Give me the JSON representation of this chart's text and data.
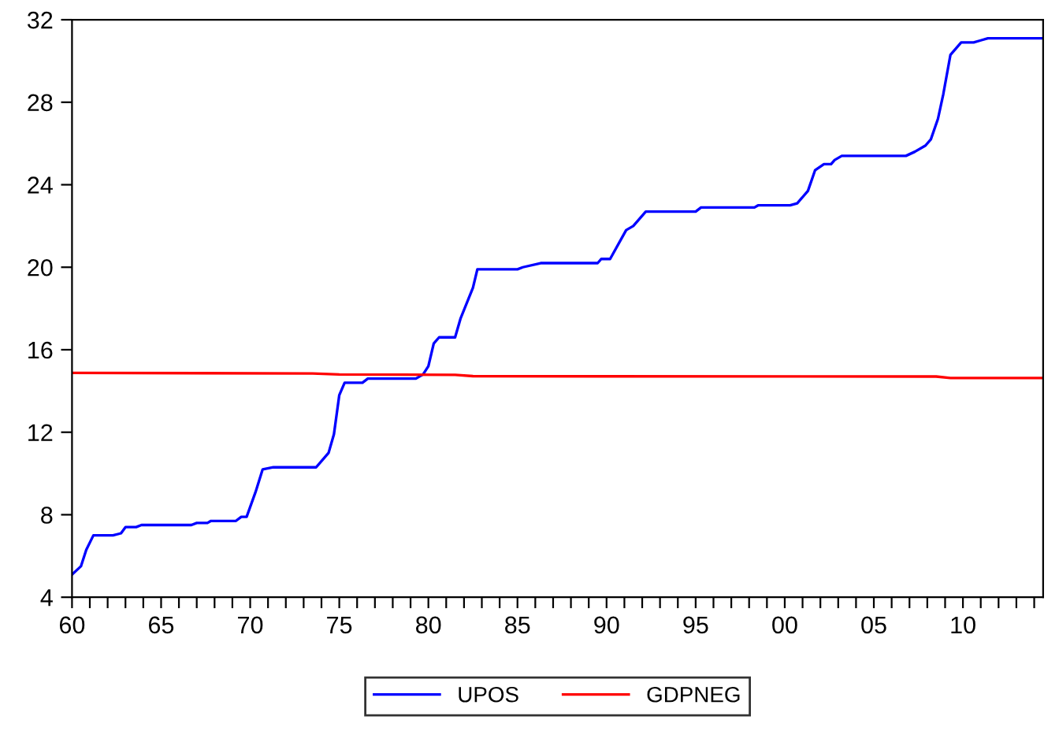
{
  "chart_data": {
    "type": "line",
    "xlim": [
      1960,
      2014.5
    ],
    "ylim": [
      4,
      32
    ],
    "yticks": [
      4,
      8,
      12,
      16,
      20,
      24,
      28,
      32
    ],
    "xticks": [
      {
        "value": 1960,
        "label": "60"
      },
      {
        "value": 1961,
        "label": null
      },
      {
        "value": 1962,
        "label": null
      },
      {
        "value": 1963,
        "label": null
      },
      {
        "value": 1964,
        "label": null
      },
      {
        "value": 1965,
        "label": "65"
      },
      {
        "value": 1966,
        "label": null
      },
      {
        "value": 1967,
        "label": null
      },
      {
        "value": 1968,
        "label": null
      },
      {
        "value": 1969,
        "label": null
      },
      {
        "value": 1970,
        "label": "70"
      },
      {
        "value": 1971,
        "label": null
      },
      {
        "value": 1972,
        "label": null
      },
      {
        "value": 1973,
        "label": null
      },
      {
        "value": 1974,
        "label": null
      },
      {
        "value": 1975,
        "label": "75"
      },
      {
        "value": 1976,
        "label": null
      },
      {
        "value": 1977,
        "label": null
      },
      {
        "value": 1978,
        "label": null
      },
      {
        "value": 1979,
        "label": null
      },
      {
        "value": 1980,
        "label": "80"
      },
      {
        "value": 1981,
        "label": null
      },
      {
        "value": 1982,
        "label": null
      },
      {
        "value": 1983,
        "label": null
      },
      {
        "value": 1984,
        "label": null
      },
      {
        "value": 1985,
        "label": "85"
      },
      {
        "value": 1986,
        "label": null
      },
      {
        "value": 1987,
        "label": null
      },
      {
        "value": 1988,
        "label": null
      },
      {
        "value": 1989,
        "label": null
      },
      {
        "value": 1990,
        "label": "90"
      },
      {
        "value": 1991,
        "label": null
      },
      {
        "value": 1992,
        "label": null
      },
      {
        "value": 1993,
        "label": null
      },
      {
        "value": 1994,
        "label": null
      },
      {
        "value": 1995,
        "label": "95"
      },
      {
        "value": 1996,
        "label": null
      },
      {
        "value": 1997,
        "label": null
      },
      {
        "value": 1998,
        "label": null
      },
      {
        "value": 1999,
        "label": null
      },
      {
        "value": 2000,
        "label": "00"
      },
      {
        "value": 2001,
        "label": null
      },
      {
        "value": 2002,
        "label": null
      },
      {
        "value": 2003,
        "label": null
      },
      {
        "value": 2004,
        "label": null
      },
      {
        "value": 2005,
        "label": "05"
      },
      {
        "value": 2006,
        "label": null
      },
      {
        "value": 2007,
        "label": null
      },
      {
        "value": 2008,
        "label": null
      },
      {
        "value": 2009,
        "label": null
      },
      {
        "value": 2010,
        "label": "10"
      },
      {
        "value": 2011,
        "label": null
      },
      {
        "value": 2012,
        "label": null
      },
      {
        "value": 2013,
        "label": null
      },
      {
        "value": 2014,
        "label": null
      }
    ],
    "grid": false,
    "legend": "bottom",
    "marker": "none",
    "line_style": "solid",
    "series": [
      {
        "name": "UPOS",
        "color": "#0000ff",
        "x": [
          1960,
          1960.5,
          1960.8,
          1961.2,
          1962.3,
          1962.75,
          1963.0,
          1963.6,
          1963.9,
          1966.7,
          1967.0,
          1967.6,
          1967.8,
          1969.2,
          1969.5,
          1969.8,
          1970.3,
          1970.7,
          1971.3,
          1973.7,
          1974.0,
          1974.4,
          1974.7,
          1975.0,
          1975.3,
          1976.3,
          1976.6,
          1979.3,
          1979.7,
          1980.0,
          1980.3,
          1980.6,
          1981.5,
          1981.8,
          1982.5,
          1982.75,
          1985.0,
          1985.3,
          1986.3,
          1989.5,
          1989.7,
          1990.2,
          1991.1,
          1991.5,
          1992.2,
          1995.0,
          1995.3,
          1998.3,
          1998.5,
          2000.3,
          2000.7,
          2001.3,
          2001.7,
          2002.2,
          2002.6,
          2002.8,
          2003.2,
          2006.8,
          2007.3,
          2007.9,
          2008.2,
          2008.6,
          2008.9,
          2009.3,
          2009.9,
          2010.6,
          2011.0,
          2011.4,
          2014.5
        ],
        "values": [
          5.1,
          5.5,
          6.3,
          7.0,
          7.0,
          7.1,
          7.4,
          7.4,
          7.5,
          7.5,
          7.6,
          7.6,
          7.7,
          7.7,
          7.9,
          7.9,
          9.1,
          10.2,
          10.3,
          10.3,
          10.6,
          11.0,
          11.9,
          13.8,
          14.4,
          14.4,
          14.6,
          14.6,
          14.8,
          15.2,
          16.3,
          16.6,
          16.6,
          17.5,
          19.0,
          19.9,
          19.9,
          20.0,
          20.2,
          20.2,
          20.4,
          20.4,
          21.8,
          22.0,
          22.7,
          22.7,
          22.9,
          22.9,
          23.0,
          23.0,
          23.1,
          23.7,
          24.7,
          25.0,
          25.0,
          25.2,
          25.4,
          25.4,
          25.6,
          25.9,
          26.2,
          27.2,
          28.4,
          30.3,
          30.9,
          30.9,
          31.0,
          31.1,
          31.1
        ]
      },
      {
        "name": "GDPNEG",
        "color": "#ff0000",
        "x": [
          1960,
          1973.5,
          1975,
          1981.5,
          1982.5,
          1990,
          2008.5,
          2009.3,
          2014.5
        ],
        "values": [
          14.88,
          14.85,
          14.8,
          14.78,
          14.72,
          14.71,
          14.7,
          14.63,
          14.63
        ]
      }
    ]
  }
}
